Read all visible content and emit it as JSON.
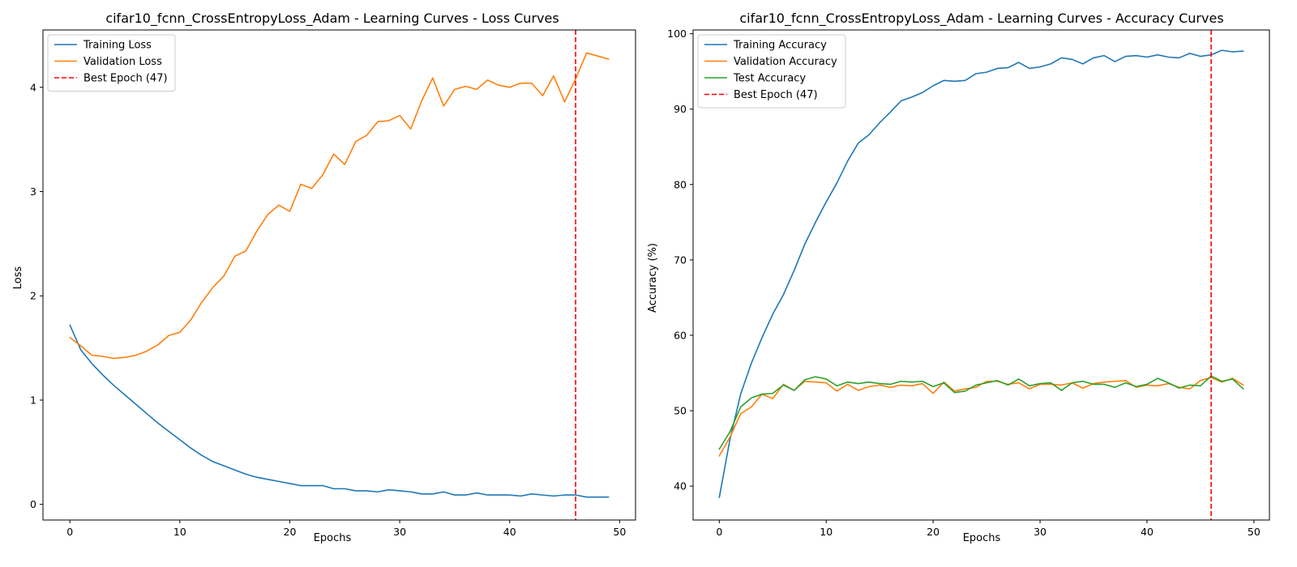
{
  "chart_data": [
    {
      "type": "line",
      "title": "cifar10_fcnn_CrossEntropyLoss_Adam - Learning Curves - Loss Curves",
      "xlabel": "Epochs",
      "ylabel": "Loss",
      "xlim": [
        -2.45,
        51.45
      ],
      "ylim": [
        -0.15,
        4.55
      ],
      "xticks": [
        0,
        10,
        20,
        30,
        40,
        50
      ],
      "yticks": [
        0,
        1,
        2,
        3,
        4
      ],
      "grid": false,
      "legend_position": "upper-left",
      "series": [
        {
          "name": "Training Loss",
          "color": "#1f77b4",
          "values": [
            1.72,
            1.48,
            1.35,
            1.24,
            1.14,
            1.05,
            0.96,
            0.87,
            0.78,
            0.7,
            0.62,
            0.54,
            0.47,
            0.41,
            0.37,
            0.33,
            0.29,
            0.26,
            0.24,
            0.22,
            0.2,
            0.18,
            0.18,
            0.18,
            0.15,
            0.15,
            0.13,
            0.13,
            0.12,
            0.14,
            0.13,
            0.12,
            0.1,
            0.1,
            0.12,
            0.09,
            0.09,
            0.11,
            0.09,
            0.09,
            0.09,
            0.08,
            0.1,
            0.09,
            0.08,
            0.09,
            0.09,
            0.07,
            0.07,
            0.07
          ]
        },
        {
          "name": "Validation Loss",
          "color": "#ff7f0e",
          "values": [
            1.6,
            1.52,
            1.43,
            1.42,
            1.4,
            1.41,
            1.43,
            1.47,
            1.53,
            1.62,
            1.65,
            1.77,
            1.94,
            2.08,
            2.19,
            2.38,
            2.43,
            2.62,
            2.78,
            2.87,
            2.81,
            3.07,
            3.03,
            3.16,
            3.36,
            3.26,
            3.48,
            3.54,
            3.67,
            3.68,
            3.73,
            3.6,
            3.87,
            4.09,
            3.82,
            3.98,
            4.01,
            3.98,
            4.07,
            4.02,
            4.0,
            4.04,
            4.04,
            3.92,
            4.11,
            3.86,
            4.08,
            4.33,
            4.3,
            4.27
          ]
        }
      ],
      "best_epoch": {
        "label": "Best Epoch (47)",
        "x": 46,
        "color": "#ff0000"
      }
    },
    {
      "type": "line",
      "title": "cifar10_fcnn_CrossEntropyLoss_Adam - Learning Curves - Accuracy Curves",
      "xlabel": "Epochs",
      "ylabel": "Accuracy (%)",
      "xlim": [
        -2.45,
        51.45
      ],
      "ylim": [
        35.5,
        100.5
      ],
      "xticks": [
        0,
        10,
        20,
        30,
        40,
        50
      ],
      "yticks": [
        40,
        50,
        60,
        70,
        80,
        90,
        100
      ],
      "grid": false,
      "legend_position": "upper-left",
      "series": [
        {
          "name": "Training Accuracy",
          "color": "#1f77b4",
          "values": [
            38.5,
            46.2,
            52.2,
            56.3,
            59.7,
            62.8,
            65.4,
            68.6,
            72.1,
            75.0,
            77.7,
            80.2,
            83.1,
            85.5,
            86.6,
            88.2,
            89.6,
            91.1,
            91.6,
            92.2,
            93.1,
            93.8,
            93.7,
            93.8,
            94.7,
            94.9,
            95.4,
            95.5,
            96.2,
            95.4,
            95.6,
            96.0,
            96.8,
            96.6,
            96.0,
            96.8,
            97.1,
            96.3,
            97.0,
            97.1,
            96.9,
            97.2,
            96.9,
            96.8,
            97.4,
            97.0,
            97.2,
            97.8,
            97.6,
            97.7
          ]
        },
        {
          "name": "Validation Accuracy",
          "color": "#ff7f0e",
          "values": [
            44.0,
            46.5,
            49.6,
            50.5,
            52.2,
            51.6,
            53.5,
            52.7,
            53.9,
            53.8,
            53.7,
            52.6,
            53.5,
            52.7,
            53.2,
            53.4,
            53.1,
            53.4,
            53.3,
            53.6,
            52.3,
            53.8,
            52.6,
            52.9,
            53.1,
            53.9,
            53.9,
            53.5,
            53.7,
            52.9,
            53.5,
            53.5,
            53.4,
            53.7,
            53.0,
            53.6,
            53.8,
            53.9,
            54.0,
            53.1,
            53.4,
            53.3,
            53.6,
            53.1,
            52.9,
            54.0,
            54.4,
            53.8,
            54.3,
            53.4
          ]
        },
        {
          "name": "Test Accuracy",
          "color": "#2ca02c",
          "values": [
            44.9,
            47.2,
            50.5,
            51.7,
            52.2,
            52.3,
            53.4,
            52.7,
            54.1,
            54.5,
            54.2,
            53.3,
            53.8,
            53.6,
            53.8,
            53.6,
            53.5,
            53.9,
            53.8,
            53.9,
            53.2,
            53.7,
            52.4,
            52.6,
            53.4,
            53.7,
            54.0,
            53.4,
            54.2,
            53.3,
            53.6,
            53.7,
            52.7,
            53.7,
            53.9,
            53.5,
            53.5,
            53.1,
            53.7,
            53.2,
            53.5,
            54.3,
            53.7,
            53.0,
            53.4,
            53.3,
            54.6,
            53.9,
            54.2,
            52.9
          ]
        }
      ],
      "best_epoch": {
        "label": "Best Epoch (47)",
        "x": 46,
        "color": "#ff0000"
      }
    }
  ]
}
